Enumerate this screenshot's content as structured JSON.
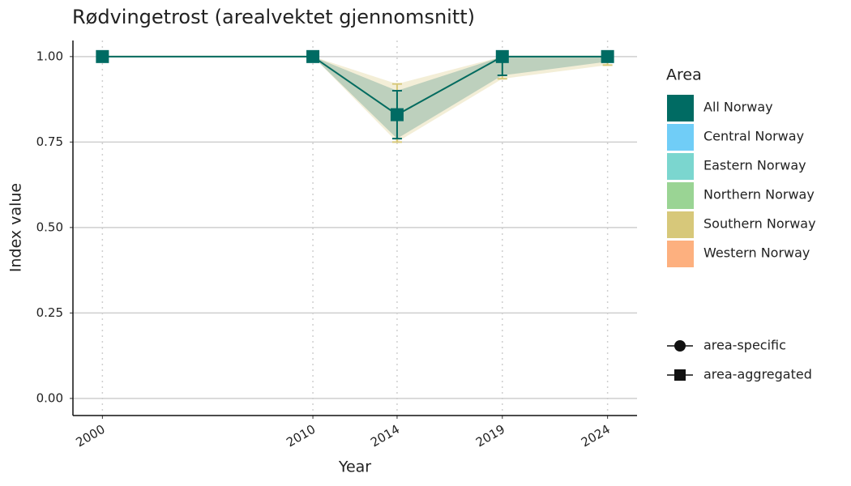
{
  "chart_data": {
    "type": "line",
    "title": "Rødvingetrost (arealvektet gjennomsnitt)",
    "x_label": "Year",
    "y_label": "Index value",
    "x": [
      2000,
      2010,
      2014,
      2019,
      2024
    ],
    "xlim": [
      1998.6,
      2025.4
    ],
    "xticks": [
      2000,
      2010,
      2014,
      2019,
      2024
    ],
    "ylim": [
      -0.05,
      1.047
    ],
    "yticks": [
      {
        "value": 0,
        "label": "0.00"
      },
      {
        "value": 0.25,
        "label": "0.25"
      },
      {
        "value": 0.5,
        "label": "0.50"
      },
      {
        "value": 0.75,
        "label": "0.75"
      },
      {
        "value": 1,
        "label": "1.00"
      }
    ],
    "grid": true,
    "legend_title": "Area",
    "series": [
      {
        "name": "All Norway",
        "color": "#006b63",
        "shape": "square",
        "values": [
          1,
          1,
          0.83,
          1,
          1
        ],
        "lower": [
          1,
          1,
          0.76,
          0.945,
          0.985
        ],
        "upper": [
          1,
          1,
          0.9,
          1,
          1
        ]
      },
      {
        "name": "Central Norway",
        "color": "#70cdf7",
        "shape": "circle",
        "values": [
          null,
          null,
          null,
          null,
          null
        ],
        "lower": [
          null,
          null,
          null,
          null,
          null
        ],
        "upper": [
          null,
          null,
          null,
          null,
          null
        ]
      },
      {
        "name": "Eastern Norway",
        "color": "#7bd6cf",
        "shape": "circle",
        "values": [
          null,
          null,
          null,
          null,
          null
        ],
        "lower": [
          null,
          null,
          null,
          null,
          null
        ],
        "upper": [
          null,
          null,
          null,
          null,
          null
        ]
      },
      {
        "name": "Northern Norway",
        "color": "#9ad494",
        "shape": "circle",
        "values": [
          null,
          null,
          null,
          null,
          null
        ],
        "lower": [
          null,
          null,
          null,
          null,
          null
        ],
        "upper": [
          null,
          null,
          null,
          null,
          null
        ]
      },
      {
        "name": "Southern Norway",
        "color": "#d7c87a",
        "shape": "circle",
        "values": [
          1,
          1,
          0.83,
          1,
          1
        ],
        "lower": [
          1,
          1,
          0.75,
          0.935,
          0.975
        ],
        "upper": [
          1,
          1,
          0.92,
          1,
          1
        ]
      },
      {
        "name": "Western Norway",
        "color": "#fdb07f",
        "shape": "circle",
        "values": [
          null,
          null,
          null,
          null,
          null
        ],
        "lower": [
          null,
          null,
          null,
          null,
          null
        ],
        "upper": [
          null,
          null,
          null,
          null,
          null
        ]
      }
    ],
    "shape_legend": [
      {
        "label": "area-specific",
        "shape": "circle"
      },
      {
        "label": "area-aggregated",
        "shape": "square"
      }
    ]
  }
}
